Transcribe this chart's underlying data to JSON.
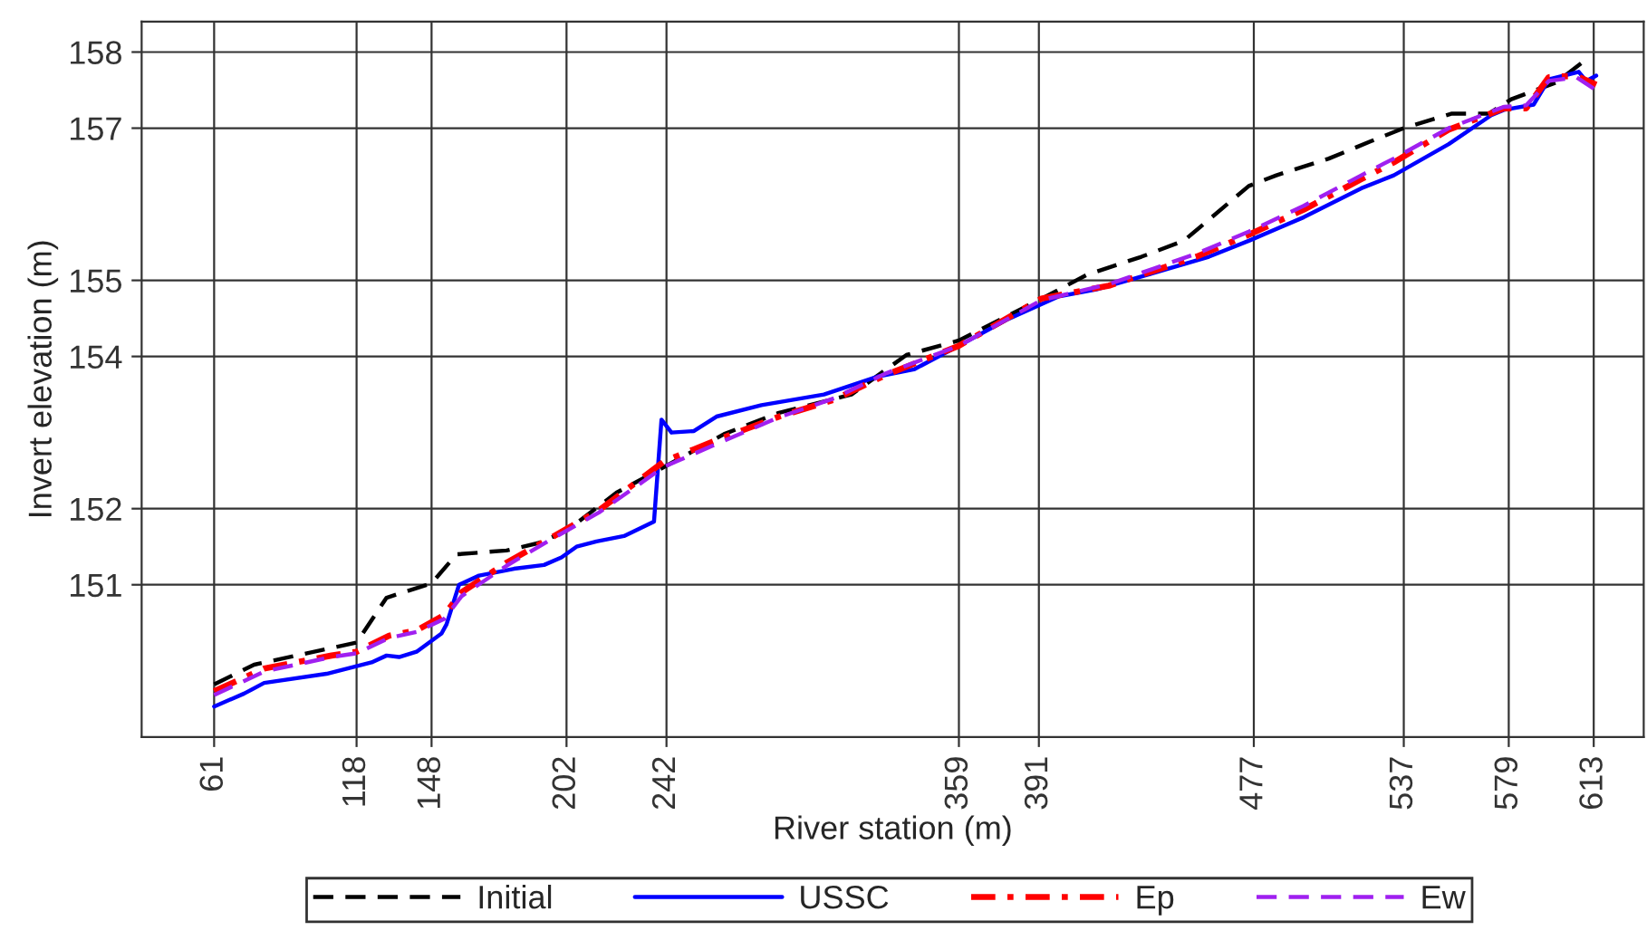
{
  "chart_data": {
    "type": "line",
    "xlabel": "River station (m)",
    "ylabel": "Invert elevation (m)",
    "xlim": [
      32,
      633
    ],
    "ylim": [
      149,
      158.4
    ],
    "xticks": [
      61,
      118,
      148,
      202,
      242,
      359,
      391,
      477,
      537,
      579,
      613
    ],
    "yticks": [
      151,
      152,
      154,
      155,
      157,
      158
    ],
    "grid": true,
    "legend": "bottom",
    "series": [
      {
        "name": "Initial",
        "color": "#000000",
        "line_style": "dashed",
        "x": [
          61,
          77,
          118,
          130,
          148,
          158,
          178,
          191,
          202,
          222,
          244,
          265,
          287,
          316,
          338,
          359,
          391,
          410,
          432,
          449,
          475,
          486,
          507,
          524,
          537,
          556,
          571,
          580,
          598,
          611
        ],
        "values": [
          149.69,
          149.95,
          150.24,
          150.83,
          151.02,
          151.4,
          151.45,
          151.55,
          151.71,
          152.21,
          152.6,
          152.98,
          153.26,
          153.5,
          154.02,
          154.21,
          154.74,
          155.07,
          155.31,
          155.52,
          156.24,
          156.38,
          156.6,
          156.83,
          157.0,
          157.19,
          157.19,
          157.38,
          157.6,
          157.93
        ]
      },
      {
        "name": "USSC",
        "color": "#0000ff",
        "line_style": "solid",
        "x": [
          61,
          73,
          81,
          106,
          124,
          130,
          135,
          142,
          152,
          154,
          159,
          167,
          181,
          193,
          200,
          206,
          214,
          225,
          237,
          240,
          244,
          253,
          262,
          280,
          305,
          327,
          341,
          359,
          378,
          399,
          414,
          432,
          459,
          475,
          497,
          520,
          533,
          555,
          572,
          577,
          589,
          595,
          607,
          610,
          614
        ],
        "values": [
          149.4,
          149.57,
          149.71,
          149.83,
          149.98,
          150.07,
          150.05,
          150.12,
          150.36,
          150.48,
          151.0,
          151.12,
          151.21,
          151.26,
          151.36,
          151.5,
          151.57,
          151.64,
          151.83,
          153.17,
          153.0,
          153.02,
          153.21,
          153.36,
          153.5,
          153.74,
          153.83,
          154.14,
          154.48,
          154.79,
          154.88,
          155.05,
          155.31,
          155.52,
          155.83,
          156.21,
          156.38,
          156.79,
          157.17,
          157.24,
          157.31,
          157.64,
          157.74,
          157.62,
          157.69
        ]
      },
      {
        "name": "Ep",
        "color": "#ff0000",
        "line_style": "dashdot",
        "x": [
          61,
          81,
          108,
          118,
          131,
          142,
          153,
          160,
          178,
          196,
          215,
          241,
          262,
          287,
          309,
          330,
          359,
          392,
          419,
          454,
          475,
          497,
          520,
          533,
          555,
          577,
          586,
          595,
          606,
          614
        ],
        "values": [
          149.6,
          149.9,
          150.07,
          150.12,
          150.33,
          150.4,
          150.6,
          150.9,
          151.29,
          151.62,
          151.98,
          152.62,
          152.9,
          153.21,
          153.43,
          153.76,
          154.14,
          154.76,
          154.93,
          155.31,
          155.6,
          155.93,
          156.33,
          156.55,
          156.98,
          157.26,
          157.26,
          157.67,
          157.69,
          157.57
        ]
      },
      {
        "name": "Ew",
        "color": "#a020f0",
        "line_style": "dashed",
        "x": [
          61,
          81,
          108,
          118,
          131,
          142,
          153,
          160,
          178,
          196,
          215,
          241,
          262,
          287,
          309,
          330,
          359,
          392,
          419,
          454,
          475,
          497,
          520,
          533,
          555,
          577,
          586,
          595,
          606,
          614
        ],
        "values": [
          149.55,
          149.86,
          150.05,
          150.1,
          150.3,
          150.38,
          150.55,
          150.85,
          151.25,
          151.6,
          151.95,
          152.55,
          152.85,
          153.2,
          153.45,
          153.78,
          154.14,
          154.74,
          154.95,
          155.35,
          155.64,
          155.98,
          156.38,
          156.6,
          157.0,
          157.28,
          157.3,
          157.62,
          157.67,
          157.5
        ]
      }
    ]
  }
}
